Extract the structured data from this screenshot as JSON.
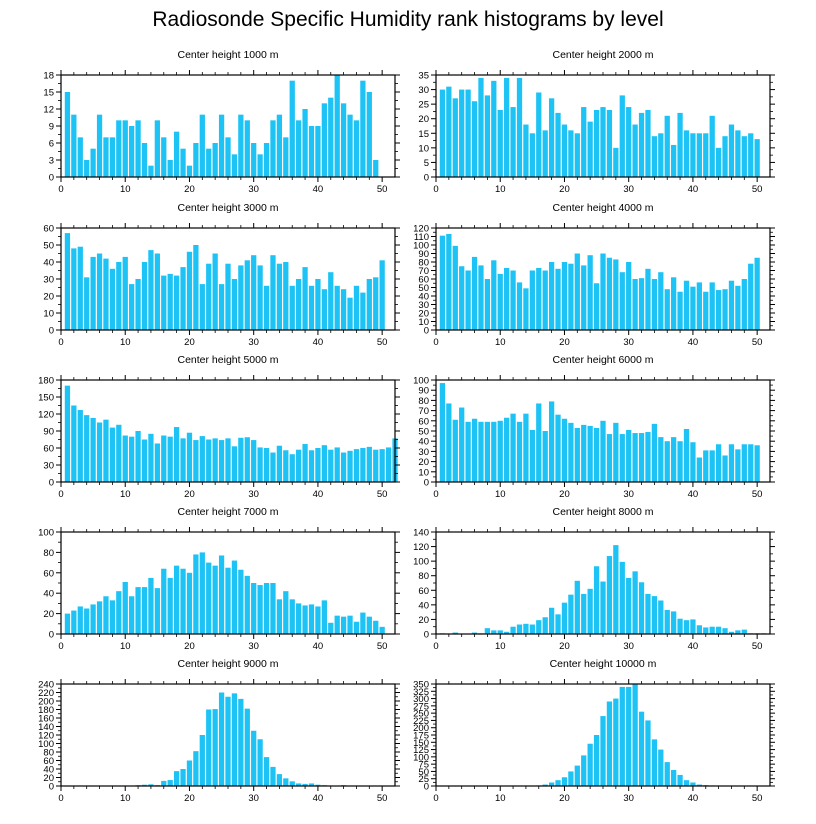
{
  "title": "Radiosonde Specific Humidity rank histograms by level",
  "colors": {
    "bar": "#1ec3f5",
    "axis": "#000000"
  },
  "chart_data": [
    {
      "type": "bar",
      "title": "Center height 1000 m",
      "xlabel": "",
      "ylabel": "",
      "xlim": [
        0,
        52
      ],
      "ylim": [
        0,
        18
      ],
      "xticks": [
        0,
        10,
        20,
        30,
        40,
        50
      ],
      "yticks": [
        0,
        3,
        6,
        9,
        12,
        15,
        18
      ],
      "values": [
        15,
        11,
        7,
        3,
        5,
        11,
        7,
        7,
        10,
        10,
        9,
        10,
        6,
        2,
        10,
        7,
        3,
        8,
        5,
        2,
        6,
        11,
        5,
        6,
        11,
        7,
        4,
        11,
        10,
        6,
        4,
        6,
        10,
        11,
        7,
        17,
        10,
        12,
        9,
        9,
        13,
        14,
        18,
        13,
        11,
        10,
        17,
        15,
        3
      ]
    },
    {
      "type": "bar",
      "title": "Center height 2000 m",
      "xlabel": "",
      "ylabel": "",
      "xlim": [
        0,
        52
      ],
      "ylim": [
        0,
        35
      ],
      "xticks": [
        0,
        10,
        20,
        30,
        40,
        50
      ],
      "yticks": [
        0,
        5,
        10,
        15,
        20,
        25,
        30,
        35
      ],
      "values": [
        30,
        31,
        27,
        30,
        30,
        26,
        34,
        28,
        33,
        23,
        34,
        24,
        34,
        18,
        15,
        29,
        16,
        27,
        22,
        18,
        16,
        15,
        24,
        19,
        23,
        24,
        23,
        10,
        28,
        24,
        18,
        22,
        23,
        14,
        15,
        21,
        11,
        22,
        16,
        15,
        15,
        15,
        21,
        10,
        14,
        18,
        16,
        14,
        15,
        13
      ]
    },
    {
      "type": "bar",
      "title": "Center height 3000 m",
      "xlabel": "",
      "ylabel": "",
      "xlim": [
        0,
        52
      ],
      "ylim": [
        0,
        60
      ],
      "xticks": [
        0,
        10,
        20,
        30,
        40,
        50
      ],
      "yticks": [
        0,
        10,
        20,
        30,
        40,
        50,
        60
      ],
      "values": [
        57,
        48,
        49,
        31,
        43,
        45,
        42,
        36,
        40,
        43,
        27,
        30,
        40,
        47,
        45,
        32,
        33,
        32,
        37,
        46,
        50,
        27,
        39,
        45,
        27,
        39,
        30,
        38,
        41,
        44,
        38,
        26,
        44,
        39,
        40,
        26,
        30,
        37,
        26,
        30,
        24,
        34,
        26,
        24,
        19,
        26,
        22,
        30,
        31,
        41
      ]
    },
    {
      "type": "bar",
      "title": "Center height 4000 m",
      "xlabel": "",
      "ylabel": "",
      "xlim": [
        0,
        52
      ],
      "ylim": [
        0,
        120
      ],
      "xticks": [
        0,
        10,
        20,
        30,
        40,
        50
      ],
      "yticks": [
        0,
        10,
        20,
        30,
        40,
        50,
        60,
        70,
        80,
        90,
        100,
        110,
        120
      ],
      "values": [
        111,
        113,
        99,
        75,
        70,
        86,
        76,
        60,
        82,
        66,
        73,
        70,
        56,
        49,
        70,
        73,
        70,
        80,
        72,
        80,
        78,
        90,
        76,
        88,
        55,
        90,
        85,
        83,
        68,
        80,
        60,
        61,
        72,
        60,
        68,
        48,
        62,
        45,
        58,
        51,
        56,
        45,
        56,
        47,
        48,
        58,
        52,
        60,
        78,
        85
      ]
    },
    {
      "type": "bar",
      "title": "Center height 5000 m",
      "xlabel": "",
      "ylabel": "",
      "xlim": [
        0,
        52
      ],
      "ylim": [
        0,
        180
      ],
      "xticks": [
        0,
        10,
        20,
        30,
        40,
        50
      ],
      "yticks": [
        0,
        30,
        60,
        90,
        120,
        150,
        180
      ],
      "values": [
        170,
        135,
        127,
        118,
        113,
        105,
        110,
        96,
        101,
        82,
        80,
        90,
        75,
        85,
        68,
        82,
        80,
        97,
        77,
        87,
        74,
        81,
        75,
        77,
        74,
        77,
        63,
        78,
        79,
        74,
        61,
        60,
        52,
        64,
        56,
        49,
        57,
        67,
        56,
        60,
        65,
        57,
        61,
        52,
        55,
        58,
        60,
        62,
        57,
        58,
        61,
        77
      ]
    },
    {
      "type": "bar",
      "title": "Center height 6000 m",
      "xlabel": "",
      "ylabel": "",
      "xlim": [
        0,
        52
      ],
      "ylim": [
        0,
        100
      ],
      "xticks": [
        0,
        10,
        20,
        30,
        40,
        50
      ],
      "yticks": [
        0,
        10,
        20,
        30,
        40,
        50,
        60,
        70,
        80,
        90,
        100
      ],
      "values": [
        97,
        77,
        61,
        73,
        59,
        62,
        59,
        59,
        59,
        60,
        63,
        67,
        59,
        67,
        51,
        77,
        50,
        79,
        66,
        62,
        58,
        53,
        56,
        55,
        53,
        60,
        47,
        58,
        47,
        51,
        48,
        48,
        49,
        57,
        44,
        40,
        44,
        40,
        52,
        39,
        24,
        31,
        31,
        37,
        26,
        37,
        32,
        37,
        37,
        36
      ]
    },
    {
      "type": "bar",
      "title": "Center height 7000 m",
      "xlabel": "",
      "ylabel": "",
      "xlim": [
        0,
        52
      ],
      "ylim": [
        0,
        100
      ],
      "xticks": [
        0,
        10,
        20,
        30,
        40,
        50
      ],
      "yticks": [
        0,
        20,
        40,
        60,
        80,
        100
      ],
      "values": [
        20,
        23,
        27,
        25,
        29,
        32,
        37,
        33,
        42,
        51,
        37,
        46,
        46,
        55,
        45,
        64,
        55,
        67,
        64,
        60,
        78,
        80,
        70,
        67,
        77,
        65,
        72,
        63,
        57,
        50,
        48,
        50,
        50,
        34,
        42,
        34,
        30,
        28,
        29,
        27,
        33,
        11,
        18,
        17,
        18,
        12,
        21,
        17,
        13,
        7
      ]
    },
    {
      "type": "bar",
      "title": "Center height 8000 m",
      "xlabel": "",
      "ylabel": "",
      "xlim": [
        0,
        52
      ],
      "ylim": [
        0,
        140
      ],
      "xticks": [
        0,
        10,
        20,
        30,
        40,
        50
      ],
      "yticks": [
        0,
        20,
        40,
        60,
        80,
        100,
        120,
        140
      ],
      "values": [
        1,
        0,
        2,
        0,
        0,
        2,
        1,
        8,
        5,
        5,
        3,
        10,
        13,
        14,
        13,
        19,
        23,
        36,
        27,
        43,
        54,
        73,
        55,
        62,
        93,
        72,
        107,
        122,
        99,
        77,
        86,
        71,
        55,
        52,
        46,
        33,
        31,
        21,
        19,
        20,
        12,
        9,
        10,
        10,
        8,
        3,
        5,
        6,
        1,
        1,
        1
      ]
    },
    {
      "type": "bar",
      "title": "Center height 9000 m",
      "xlabel": "",
      "ylabel": "",
      "xlim": [
        0,
        52
      ],
      "ylim": [
        0,
        240
      ],
      "xticks": [
        0,
        10,
        20,
        30,
        40,
        50
      ],
      "yticks": [
        0,
        20,
        40,
        60,
        80,
        100,
        120,
        140,
        160,
        180,
        200,
        220,
        240
      ],
      "values": [
        0,
        0,
        0,
        0,
        0,
        0,
        0,
        0,
        0,
        0,
        0,
        2,
        3,
        4,
        2,
        12,
        14,
        35,
        40,
        60,
        82,
        120,
        180,
        181,
        220,
        210,
        218,
        205,
        182,
        130,
        110,
        68,
        45,
        28,
        18,
        11,
        6,
        5,
        6,
        3,
        2,
        1,
        1,
        2,
        1,
        0,
        1,
        0,
        0,
        0
      ]
    },
    {
      "type": "bar",
      "title": "Center height 10000 m",
      "xlabel": "",
      "ylabel": "",
      "xlim": [
        0,
        52
      ],
      "ylim": [
        0,
        350
      ],
      "xticks": [
        0,
        10,
        20,
        30,
        40,
        50
      ],
      "yticks": [
        0,
        25,
        50,
        75,
        100,
        125,
        150,
        175,
        200,
        225,
        250,
        275,
        300,
        325,
        350
      ],
      "values": [
        0,
        0,
        0,
        0,
        0,
        0,
        0,
        0,
        0,
        0,
        0,
        0,
        0,
        0,
        0,
        2,
        5,
        12,
        20,
        30,
        50,
        70,
        105,
        145,
        175,
        240,
        290,
        300,
        340,
        340,
        352,
        255,
        225,
        160,
        125,
        82,
        55,
        38,
        20,
        12,
        5,
        3,
        2,
        0,
        1,
        0,
        1,
        0,
        0,
        0
      ]
    }
  ]
}
